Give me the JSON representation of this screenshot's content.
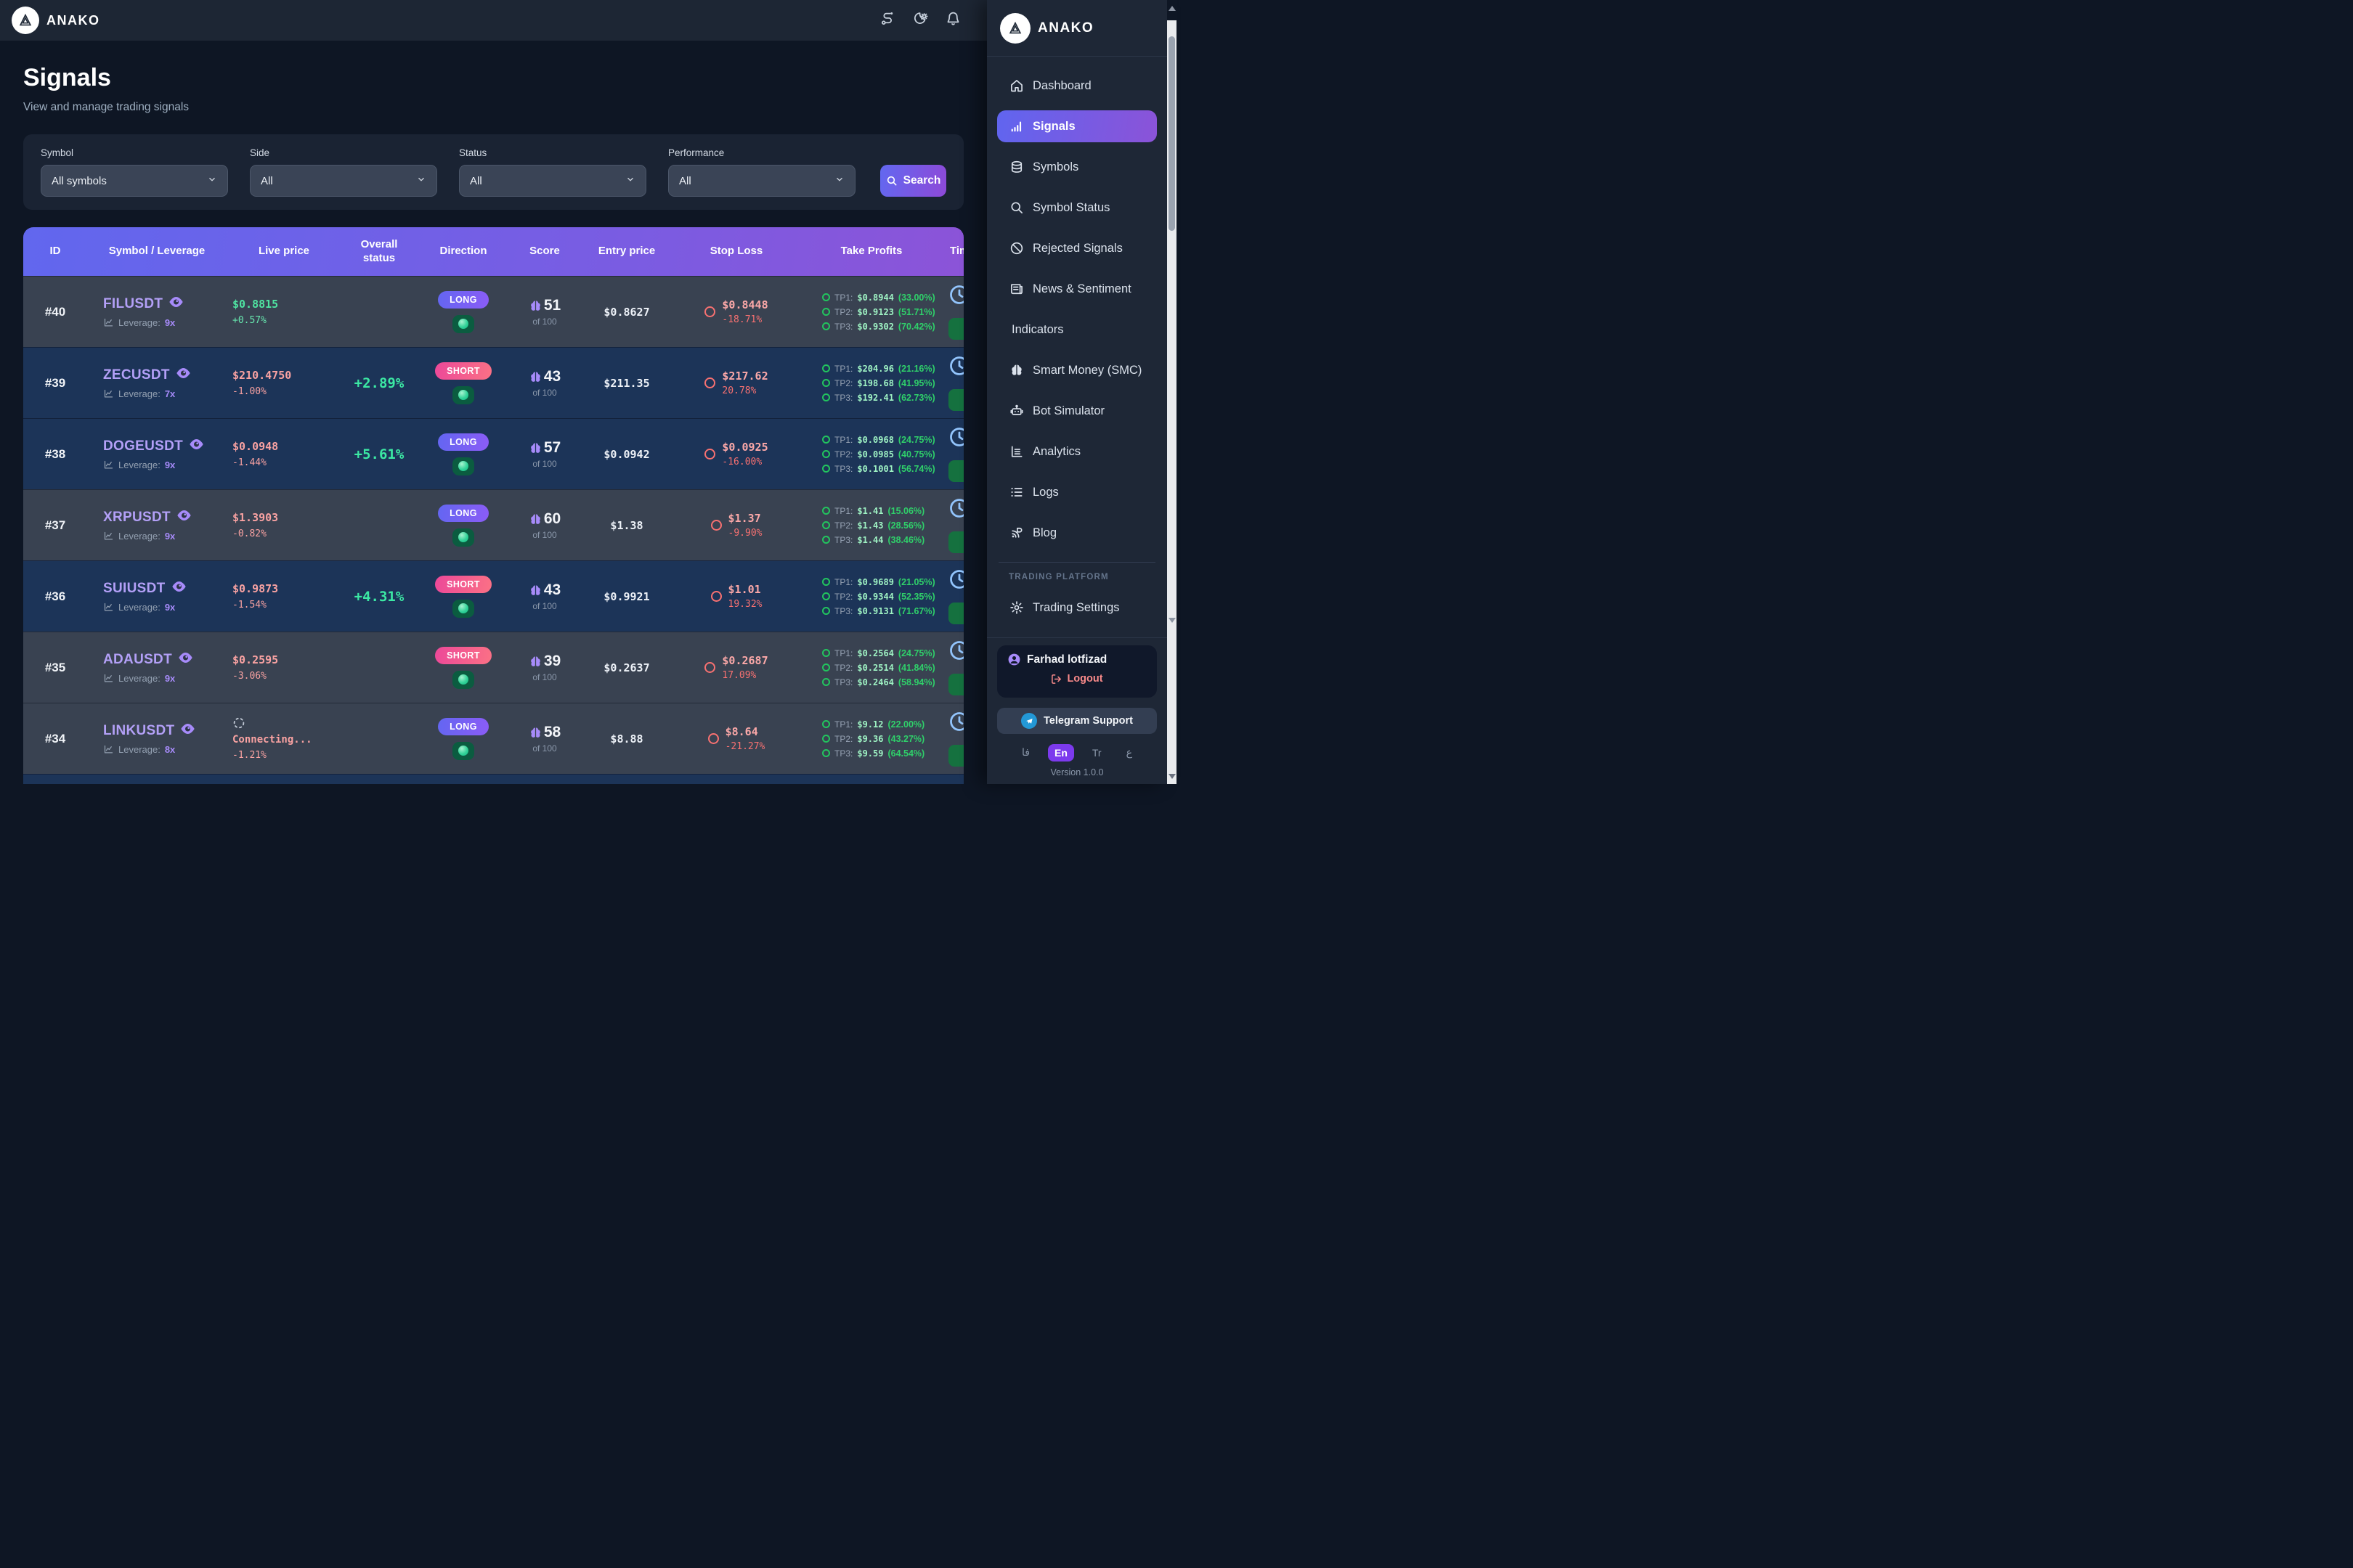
{
  "brand": "ANAKO",
  "page": {
    "title": "Signals",
    "subtitle": "View and manage trading signals"
  },
  "topbar": {
    "icons": [
      "route-icon",
      "theme-toggle-icon",
      "notifications-bell-icon"
    ]
  },
  "filters": {
    "fields": [
      {
        "label": "Symbol",
        "value": "All symbols"
      },
      {
        "label": "Side",
        "value": "All"
      },
      {
        "label": "Status",
        "value": "All"
      },
      {
        "label": "Performance",
        "value": "All"
      }
    ],
    "search_label": "Search"
  },
  "table": {
    "columns": [
      "ID",
      "Symbol / Leverage",
      "Live price",
      "Overall status",
      "Direction",
      "Score",
      "Entry price",
      "Stop Loss",
      "Take Profits",
      "Time"
    ],
    "leverage_label": "Leverage:",
    "score_suffix": "of 100"
  },
  "signals": [
    {
      "id": "#40",
      "symbol": "FILUSDT",
      "leverage": "9x",
      "live_price": "$0.8815",
      "price_change": "+0.57%",
      "price_trend": "up",
      "overall_status": "",
      "direction": "LONG",
      "score": "51",
      "entry_price": "$0.8627",
      "stop_loss": {
        "price": "$0.8448",
        "pct": "-18.71%"
      },
      "take_profits": [
        {
          "label": "TP1:",
          "price": "$0.8944",
          "pct": "(33.00%)"
        },
        {
          "label": "TP2:",
          "price": "$0.9123",
          "pct": "(51.71%)"
        },
        {
          "label": "TP3:",
          "price": "$0.9302",
          "pct": "(70.42%)"
        }
      ],
      "highlighted": false,
      "connecting": false
    },
    {
      "id": "#39",
      "symbol": "ZECUSDT",
      "leverage": "7x",
      "live_price": "$210.4750",
      "price_change": "-1.00%",
      "price_trend": "down",
      "overall_status": "+2.89%",
      "direction": "SHORT",
      "score": "43",
      "entry_price": "$211.35",
      "stop_loss": {
        "price": "$217.62",
        "pct": "20.78%"
      },
      "take_profits": [
        {
          "label": "TP1:",
          "price": "$204.96",
          "pct": "(21.16%)"
        },
        {
          "label": "TP2:",
          "price": "$198.68",
          "pct": "(41.95%)"
        },
        {
          "label": "TP3:",
          "price": "$192.41",
          "pct": "(62.73%)"
        }
      ],
      "highlighted": true,
      "connecting": false
    },
    {
      "id": "#38",
      "symbol": "DOGEUSDT",
      "leverage": "9x",
      "live_price": "$0.0948",
      "price_change": "-1.44%",
      "price_trend": "down",
      "overall_status": "+5.61%",
      "direction": "LONG",
      "score": "57",
      "entry_price": "$0.0942",
      "stop_loss": {
        "price": "$0.0925",
        "pct": "-16.00%"
      },
      "take_profits": [
        {
          "label": "TP1:",
          "price": "$0.0968",
          "pct": "(24.75%)"
        },
        {
          "label": "TP2:",
          "price": "$0.0985",
          "pct": "(40.75%)"
        },
        {
          "label": "TP3:",
          "price": "$0.1001",
          "pct": "(56.74%)"
        }
      ],
      "highlighted": true,
      "connecting": false
    },
    {
      "id": "#37",
      "symbol": "XRPUSDT",
      "leverage": "9x",
      "live_price": "$1.3903",
      "price_change": "-0.82%",
      "price_trend": "down",
      "overall_status": "",
      "direction": "LONG",
      "score": "60",
      "entry_price": "$1.38",
      "stop_loss": {
        "price": "$1.37",
        "pct": "-9.90%"
      },
      "take_profits": [
        {
          "label": "TP1:",
          "price": "$1.41",
          "pct": "(15.06%)"
        },
        {
          "label": "TP2:",
          "price": "$1.43",
          "pct": "(28.56%)"
        },
        {
          "label": "TP3:",
          "price": "$1.44",
          "pct": "(38.46%)"
        }
      ],
      "highlighted": false,
      "connecting": false
    },
    {
      "id": "#36",
      "symbol": "SUIUSDT",
      "leverage": "9x",
      "live_price": "$0.9873",
      "price_change": "-1.54%",
      "price_trend": "down",
      "overall_status": "+4.31%",
      "direction": "SHORT",
      "score": "43",
      "entry_price": "$0.9921",
      "stop_loss": {
        "price": "$1.01",
        "pct": "19.32%"
      },
      "take_profits": [
        {
          "label": "TP1:",
          "price": "$0.9689",
          "pct": "(21.05%)"
        },
        {
          "label": "TP2:",
          "price": "$0.9344",
          "pct": "(52.35%)"
        },
        {
          "label": "TP3:",
          "price": "$0.9131",
          "pct": "(71.67%)"
        }
      ],
      "highlighted": true,
      "connecting": false
    },
    {
      "id": "#35",
      "symbol": "ADAUSDT",
      "leverage": "9x",
      "live_price": "$0.2595",
      "price_change": "-3.06%",
      "price_trend": "down",
      "overall_status": "",
      "direction": "SHORT",
      "score": "39",
      "entry_price": "$0.2637",
      "stop_loss": {
        "price": "$0.2687",
        "pct": "17.09%"
      },
      "take_profits": [
        {
          "label": "TP1:",
          "price": "$0.2564",
          "pct": "(24.75%)"
        },
        {
          "label": "TP2:",
          "price": "$0.2514",
          "pct": "(41.84%)"
        },
        {
          "label": "TP3:",
          "price": "$0.2464",
          "pct": "(58.94%)"
        }
      ],
      "highlighted": false,
      "connecting": false
    },
    {
      "id": "#34",
      "symbol": "LINKUSDT",
      "leverage": "8x",
      "live_price": "Connecting...",
      "price_change": "-1.21%",
      "price_trend": "down",
      "overall_status": "",
      "direction": "LONG",
      "score": "58",
      "entry_price": "$8.88",
      "stop_loss": {
        "price": "$8.64",
        "pct": "-21.27%"
      },
      "take_profits": [
        {
          "label": "TP1:",
          "price": "$9.12",
          "pct": "(22.00%)"
        },
        {
          "label": "TP2:",
          "price": "$9.36",
          "pct": "(43.27%)"
        },
        {
          "label": "TP3:",
          "price": "$9.59",
          "pct": "(64.54%)"
        }
      ],
      "highlighted": false,
      "connecting": true
    }
  ],
  "sidebar": {
    "brand": "ANAKO",
    "items": [
      {
        "label": "Dashboard",
        "icon": "home-icon",
        "active": false
      },
      {
        "label": "Signals",
        "icon": "signals-bars-icon",
        "active": true
      },
      {
        "label": "Symbols",
        "icon": "coins-icon",
        "active": false
      },
      {
        "label": "Symbol Status",
        "icon": "search-icon",
        "active": false
      },
      {
        "label": "Rejected Signals",
        "icon": "ban-icon",
        "active": false
      },
      {
        "label": "News & Sentiment",
        "icon": "news-icon",
        "active": false
      },
      {
        "label": "Indicators",
        "icon": "",
        "active": false
      },
      {
        "label": "Smart Money (SMC)",
        "icon": "brain-icon",
        "active": false
      },
      {
        "label": "Bot Simulator",
        "icon": "robot-icon",
        "active": false
      },
      {
        "label": "Analytics",
        "icon": "analytics-icon",
        "active": false
      },
      {
        "label": "Logs",
        "icon": "logs-icon",
        "active": false
      },
      {
        "label": "Blog",
        "icon": "blog-icon",
        "active": false
      }
    ],
    "section_label": "TRADING PLATFORM",
    "section_items": [
      {
        "label": "Trading Settings",
        "icon": "gear-icon"
      }
    ],
    "user": {
      "name": "Farhad lotfizad",
      "logout_label": "Logout"
    },
    "telegram_label": "Telegram Support",
    "languages": [
      {
        "label": "فا",
        "active": false
      },
      {
        "label": "En",
        "active": true
      },
      {
        "label": "Tr",
        "active": false
      },
      {
        "label": "ع",
        "active": false
      }
    ],
    "version": "Version 1.0.0"
  },
  "colors": {
    "accent_indigo": "#6366f1",
    "accent_purple": "#8b5cf6",
    "short_pink": "#ec4899",
    "positive_green": "#34d399",
    "negative_red": "#f87171",
    "page_bg": "#0e1624",
    "sidebar_bg": "#1e2736",
    "row_highlight_navy": "#1c3458",
    "row_slate": "#394251",
    "telegram_blue": "#2398d6",
    "lang_active_purple": "#7c3aed"
  }
}
